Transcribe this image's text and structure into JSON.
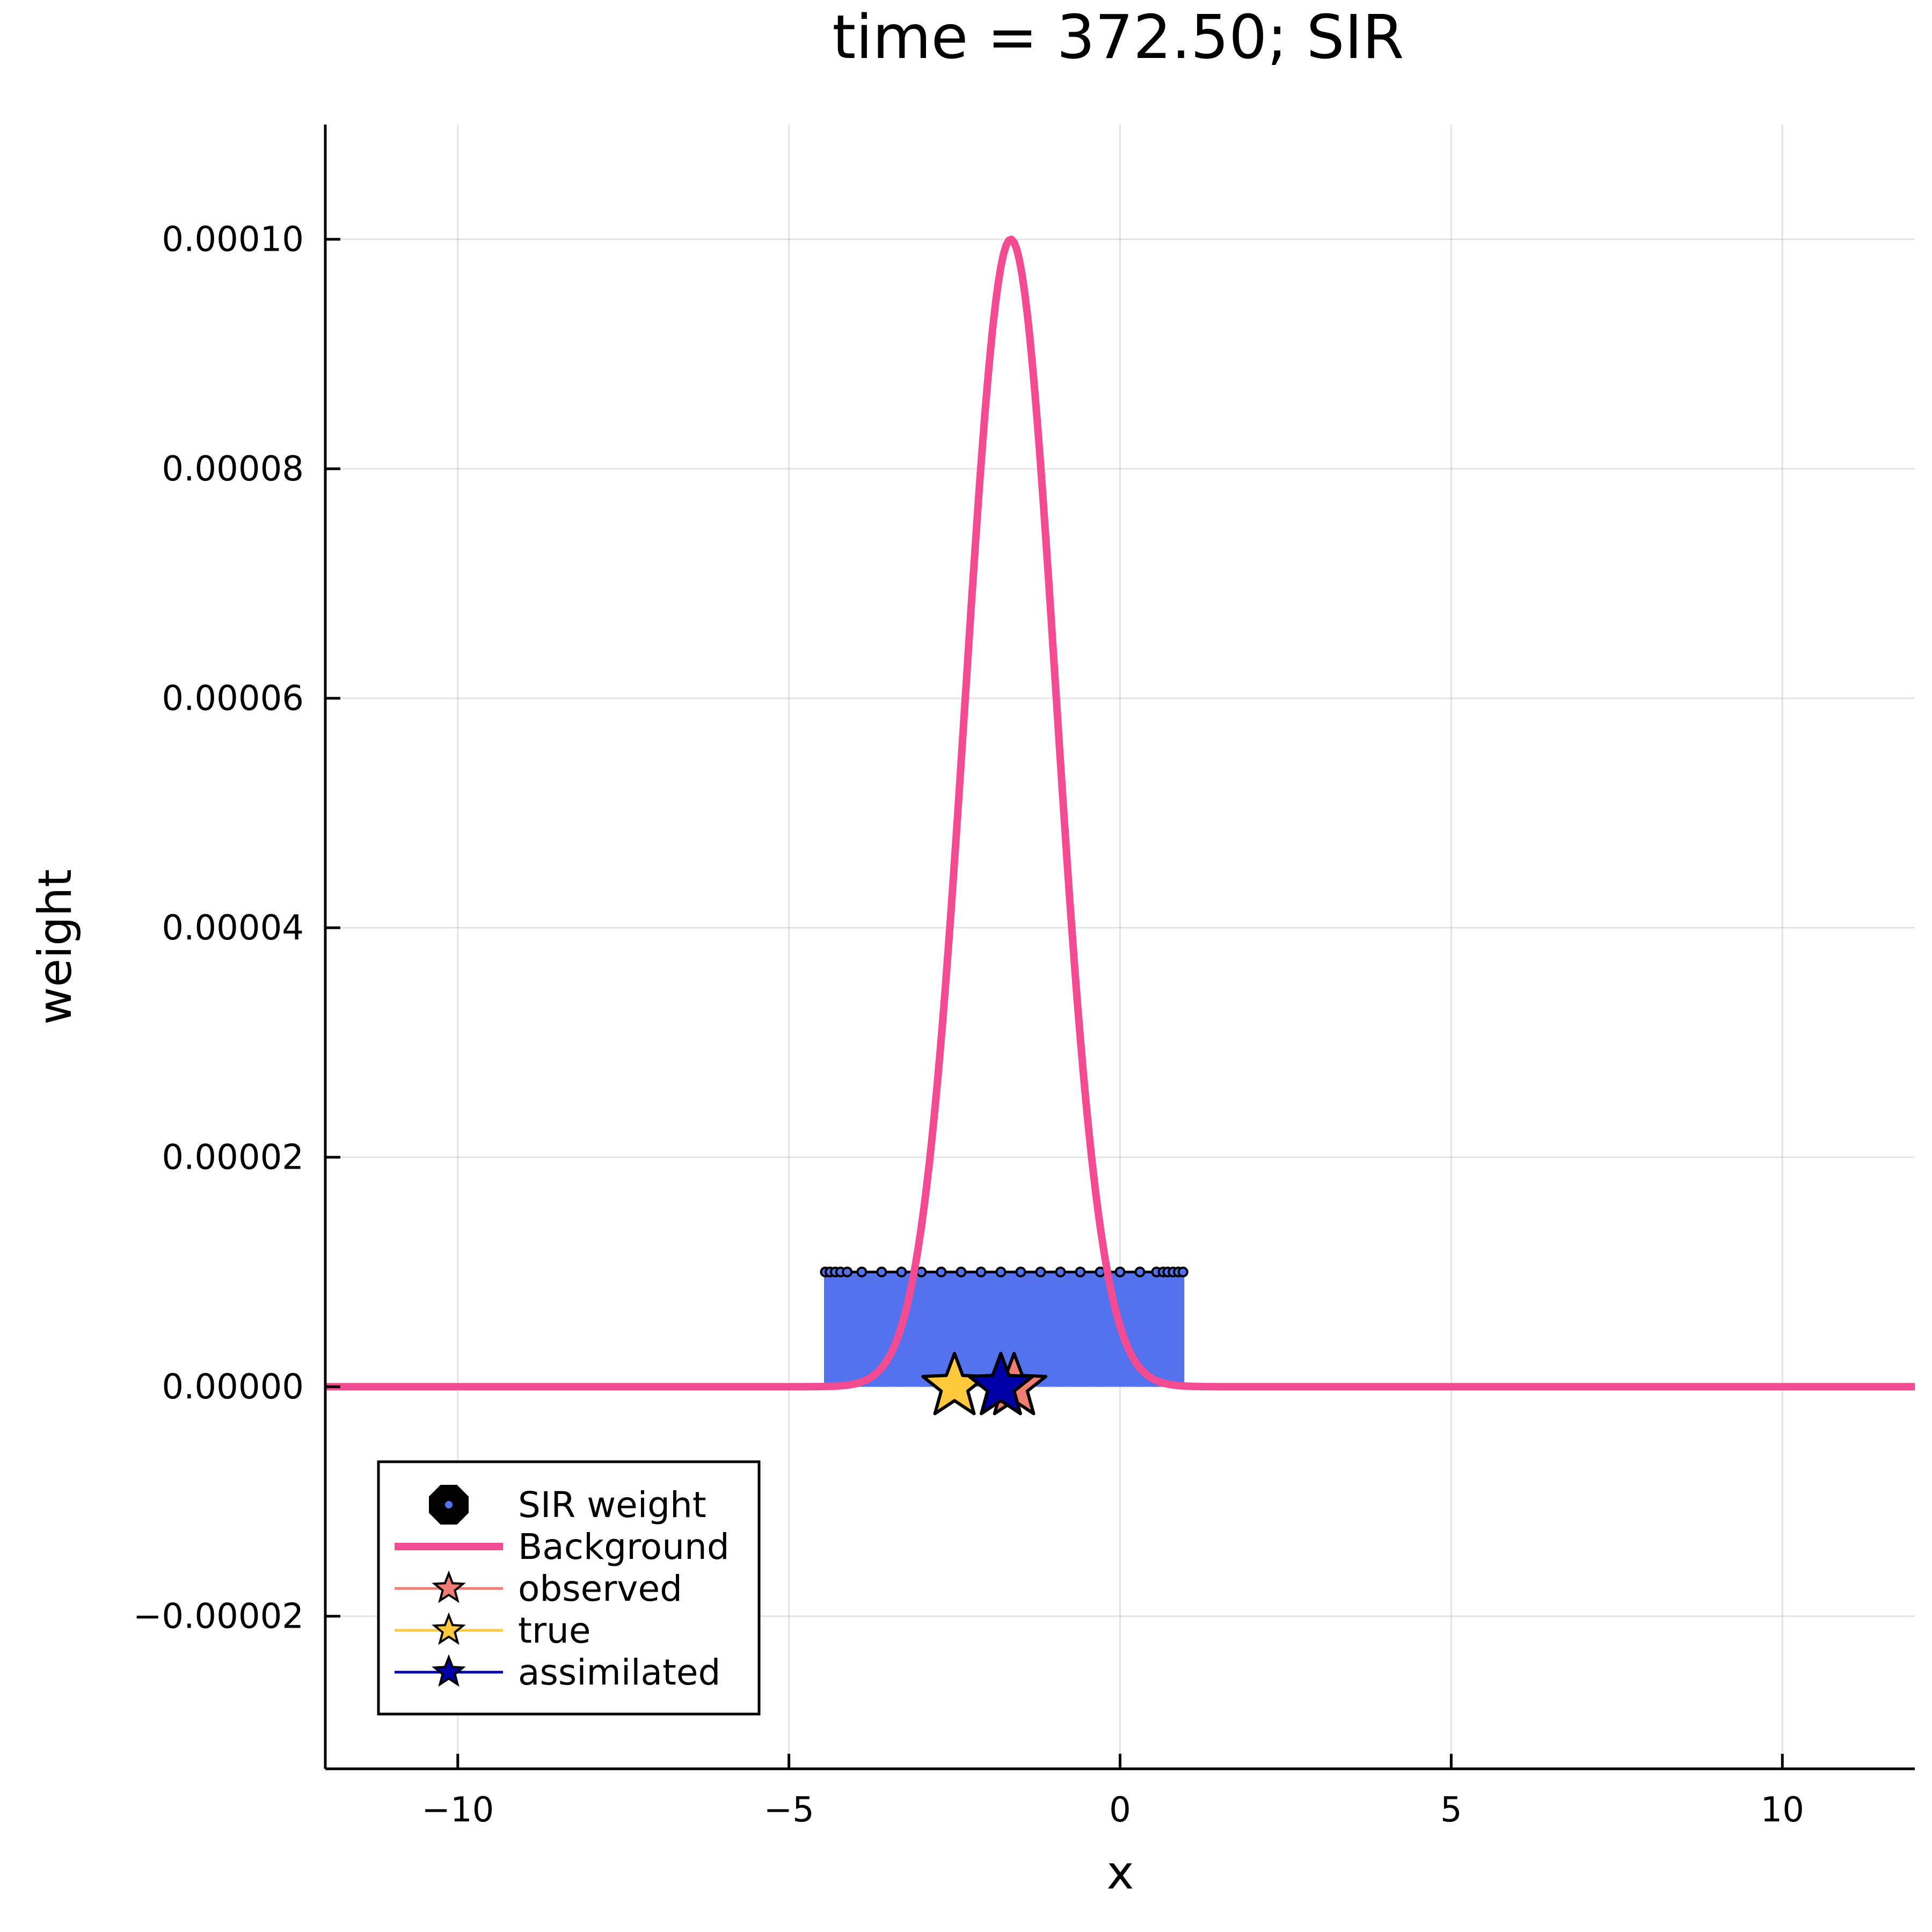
{
  "chart_data": {
    "type": "line",
    "title": "time = 372.50; SIR",
    "xlabel": "x",
    "ylabel": "weight",
    "xlim": [
      -12,
      12
    ],
    "ylim": [
      -3.33e-05,
      0.00011
    ],
    "grid": true,
    "legend_position": "bottom-left",
    "x_ticks": [
      -10,
      -5,
      0,
      5,
      10
    ],
    "x_tick_labels": [
      "−10",
      "−5",
      "0",
      "5",
      "10"
    ],
    "y_ticks": [
      -2e-05,
      0,
      2e-05,
      4e-05,
      6e-05,
      8e-05,
      0.0001
    ],
    "y_tick_labels": [
      "−0.00002",
      "0.00000",
      "0.00002",
      "0.00004",
      "0.00006",
      "0.00008",
      "0.00010"
    ],
    "legend": [
      "SIR weight",
      "Background",
      "observed",
      "true",
      "assimilated"
    ],
    "series": [
      {
        "name": "SIR weight",
        "kind": "stem",
        "color": "#5572EE",
        "weight": 1e-05,
        "x_range": [
          -4.45,
          0.95
        ],
        "x": [
          -4.45,
          -4.38,
          -4.3,
          -4.22,
          -4.12,
          -3.9,
          -3.6,
          -3.3,
          -3.0,
          -2.7,
          -2.4,
          -2.1,
          -1.8,
          -1.5,
          -1.2,
          -0.9,
          -0.6,
          -0.3,
          0.0,
          0.3,
          0.55,
          0.65,
          0.72,
          0.8,
          0.88,
          0.95
        ]
      },
      {
        "name": "Background",
        "kind": "gaussian",
        "color": "#F34B91",
        "peak": 0.0001,
        "mean": -1.65,
        "std": 0.68
      },
      {
        "name": "observed",
        "kind": "star",
        "color": "#F07C73",
        "points": [
          {
            "x": -1.6,
            "y": 0
          }
        ]
      },
      {
        "name": "true",
        "kind": "star",
        "color": "#FFC83D",
        "points": [
          {
            "x": -2.5,
            "y": 0
          }
        ]
      },
      {
        "name": "assimilated",
        "kind": "star",
        "color": "#0000A8",
        "points": [
          {
            "x": -1.8,
            "y": 0
          }
        ]
      }
    ]
  }
}
